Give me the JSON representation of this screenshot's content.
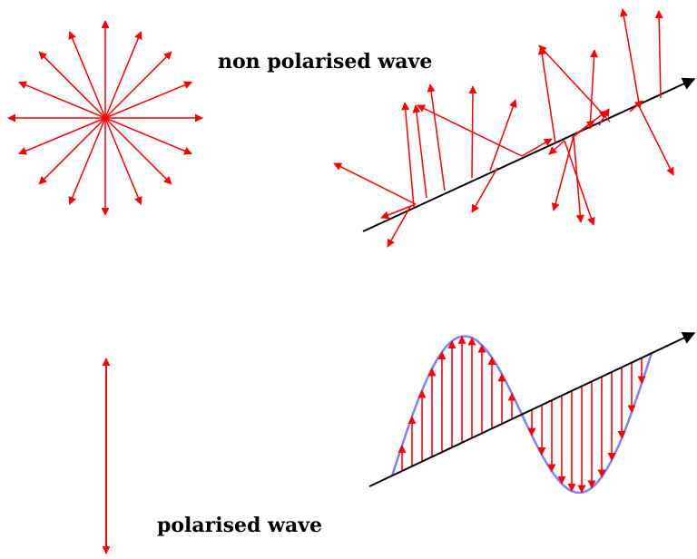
{
  "labels": {
    "non_polarised": "non polarised wave",
    "polarised": "polarised wave"
  },
  "colors": {
    "arrow": "#ff0000",
    "axis": "#000000",
    "wave_curve": "#8080ff",
    "background": "#ffffff"
  }
}
